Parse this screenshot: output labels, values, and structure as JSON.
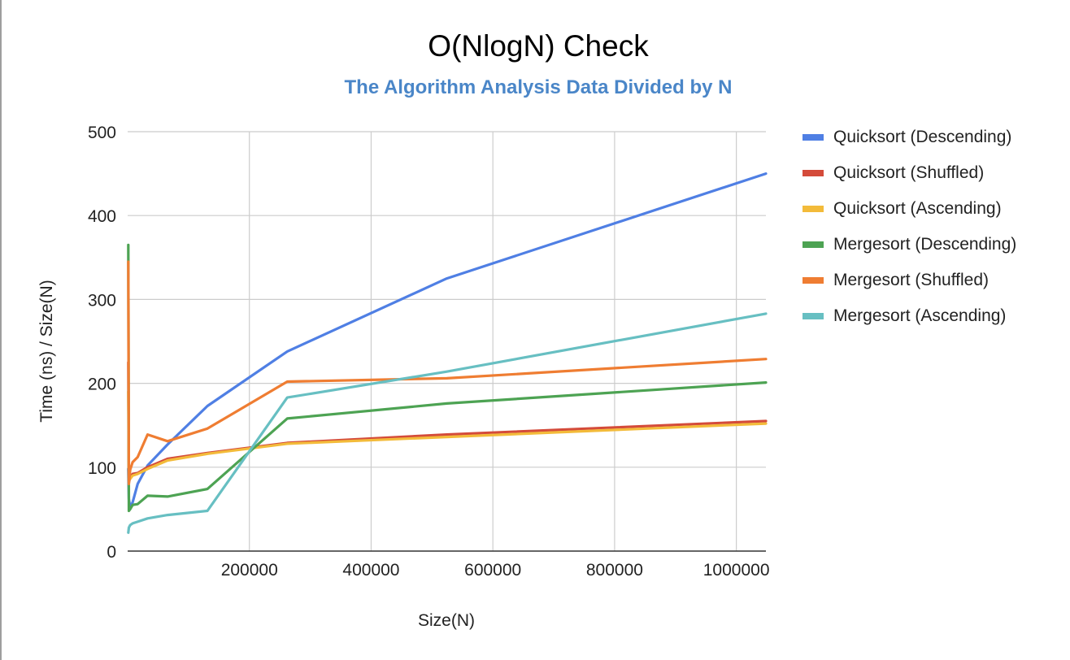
{
  "chart_data": {
    "type": "line",
    "title": "O(NlogN) Check",
    "subtitle": "The Algorithm Analysis Data Divided by N",
    "xlabel": "Size(N)",
    "ylabel": "Time (ns) / Size(N)",
    "xlim": [
      0,
      1048576
    ],
    "ylim": [
      0,
      500
    ],
    "x_ticks": [
      200000,
      400000,
      600000,
      800000,
      1000000
    ],
    "y_ticks": [
      0,
      100,
      200,
      300,
      400,
      500
    ],
    "grid": true,
    "legend_position": "right",
    "x": [
      1024,
      2048,
      4096,
      8192,
      16384,
      32768,
      65536,
      131072,
      262144,
      524288,
      1048576
    ],
    "series": [
      {
        "name": "Quicksort (Descending)",
        "color": "#4f7fe4",
        "values": [
          98,
          62,
          52,
          58,
          80,
          102,
          127,
          173,
          238,
          325,
          450
        ]
      },
      {
        "name": "Quicksort (Shuffled)",
        "color": "#d44b3a",
        "values": [
          225,
          82,
          88,
          92,
          93,
          100,
          110,
          117,
          129,
          139,
          155
        ]
      },
      {
        "name": "Quicksort (Ascending)",
        "color": "#f3bb3a",
        "values": [
          190,
          85,
          86,
          90,
          92,
          98,
          108,
          116,
          128,
          136,
          152
        ]
      },
      {
        "name": "Mergesort (Descending)",
        "color": "#4da353",
        "values": [
          365,
          48,
          50,
          55,
          56,
          66,
          65,
          74,
          158,
          176,
          201
        ]
      },
      {
        "name": "Mergesort (Shuffled)",
        "color": "#ef7d32",
        "values": [
          345,
          80,
          97,
          106,
          112,
          139,
          131,
          146,
          202,
          206,
          229
        ]
      },
      {
        "name": "Mergesort (Ascending)",
        "color": "#67bfc2",
        "values": [
          22,
          28,
          31,
          33,
          35,
          39,
          43,
          48,
          183,
          214,
          283
        ]
      }
    ]
  }
}
